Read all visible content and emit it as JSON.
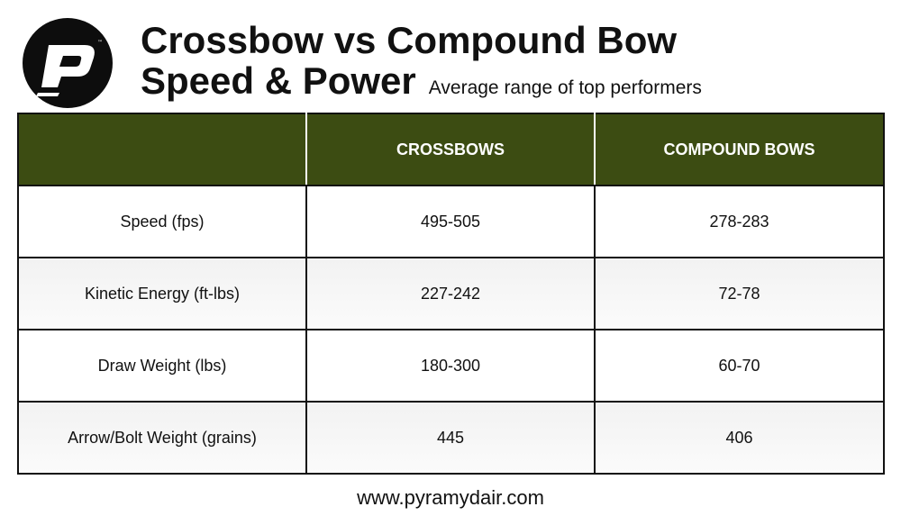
{
  "header": {
    "title_line1": "Crossbow vs Compound Bow",
    "title_line2": "Speed & Power",
    "subtitle": "Average range of top performers",
    "logo_icon": "pyramyd-p-logo-icon"
  },
  "table": {
    "columns": [
      "",
      "CROSSBOWS",
      "COMPOUND BOWS"
    ],
    "rows": [
      {
        "label": "Speed (fps)",
        "crossbows": "495-505",
        "compound": "278-283"
      },
      {
        "label": "Kinetic Energy (ft-lbs)",
        "crossbows": "227-242",
        "compound": "72-78"
      },
      {
        "label": "Draw Weight (lbs)",
        "crossbows": "180-300",
        "compound": "60-70"
      },
      {
        "label": "Arrow/Bolt Weight (grains)",
        "crossbows": "445",
        "compound": "406"
      }
    ]
  },
  "footer": {
    "url": "www.pyramydair.com"
  },
  "colors": {
    "header_bg": "#3c4c12",
    "header_text": "#ffffff",
    "border": "#111111"
  }
}
